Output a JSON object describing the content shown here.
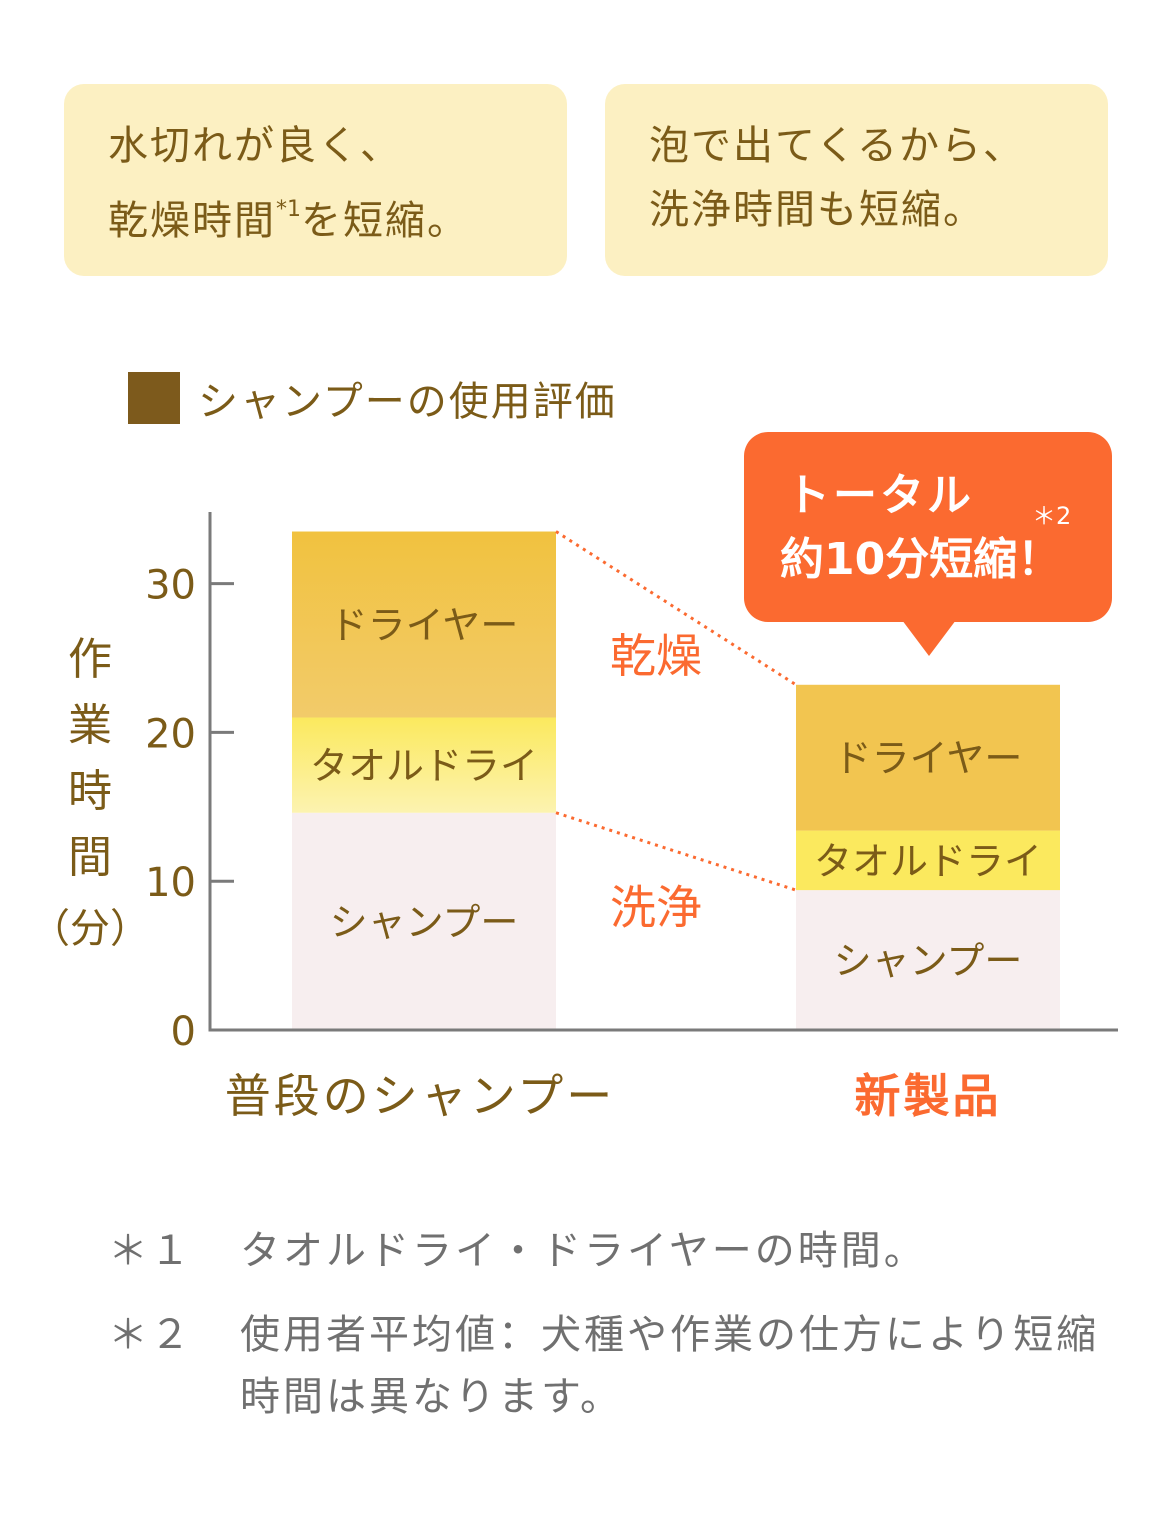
{
  "cards": [
    {
      "lines": [
        "水切れが良く、",
        "乾燥時間",
        "*1",
        "を短縮。"
      ]
    },
    {
      "lines": [
        "泡で出てくるから、",
        "洗浄時間も短縮。"
      ]
    }
  ],
  "legend": {
    "text": "シャンプーの使用評価",
    "color": "#7d5a1c"
  },
  "callout": {
    "line1": "トータル",
    "line2": "約10分短縮！",
    "note": "＊2",
    "color": "#fb6a30"
  },
  "chart_data": {
    "type": "bar",
    "stacked": true,
    "ylabel": "作業時間（分）",
    "ylim": [
      0,
      35
    ],
    "yticks": [
      0,
      10,
      20,
      30
    ],
    "categories": [
      "普段のシャンプー",
      "新製品"
    ],
    "series": [
      {
        "name": "シャンプー",
        "values": [
          14.6,
          9.4
        ],
        "color": "#f7eeef"
      },
      {
        "name": "タオルドライ",
        "values": [
          6.4,
          4.0
        ],
        "color": "#fbed6e"
      },
      {
        "name": "ドライヤー",
        "values": [
          12.5,
          9.8
        ],
        "color": "#f2c657"
      }
    ],
    "annotations": [
      {
        "text": "乾燥",
        "color": "#fb6a30"
      },
      {
        "text": "洗浄",
        "color": "#fb6a30"
      }
    ],
    "category_colors": [
      "#7b5b18",
      "#fb6a30"
    ]
  },
  "footnotes": [
    {
      "mark": "＊１",
      "text": "タオルドライ・ドライヤーの時間。"
    },
    {
      "mark": "＊２",
      "text": "使用者平均値：犬種や作業の仕方により短縮時間は異なります。"
    }
  ]
}
